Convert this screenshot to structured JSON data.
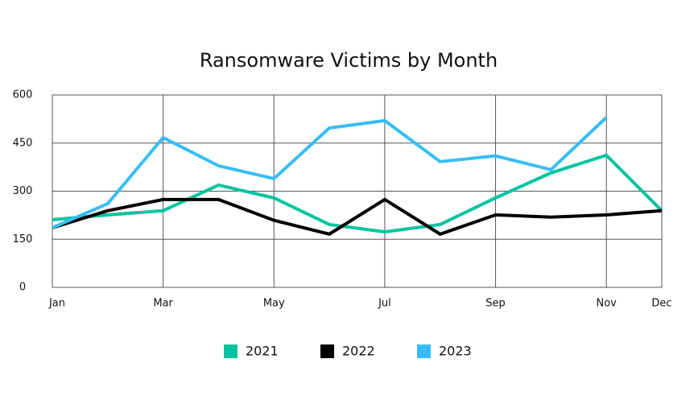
{
  "chart_data": {
    "type": "line",
    "title": "Ransomware Victims by Month",
    "categories": [
      "Jan",
      null,
      "Mar",
      null,
      "May",
      null,
      "Jul",
      null,
      "Sep",
      null,
      "Nov",
      "Dec"
    ],
    "series": [
      {
        "name": "2021",
        "color": "#00c4a0",
        "values": [
          211,
          226,
          239,
          319,
          279,
          196,
          173,
          196,
          279,
          357,
          412,
          239
        ]
      },
      {
        "name": "2022",
        "color": "#000000",
        "values": [
          186,
          239,
          274,
          274,
          209,
          166,
          274,
          166,
          226,
          219,
          226,
          239
        ]
      },
      {
        "name": "2023",
        "color": "#36bdf7",
        "values": [
          186,
          261,
          467,
          379,
          339,
          497,
          520,
          392,
          410,
          367,
          530,
          null
        ]
      }
    ],
    "ylim": [
      0,
      600
    ],
    "yticks": [
      0,
      150,
      300,
      450,
      600
    ],
    "grid": true
  }
}
